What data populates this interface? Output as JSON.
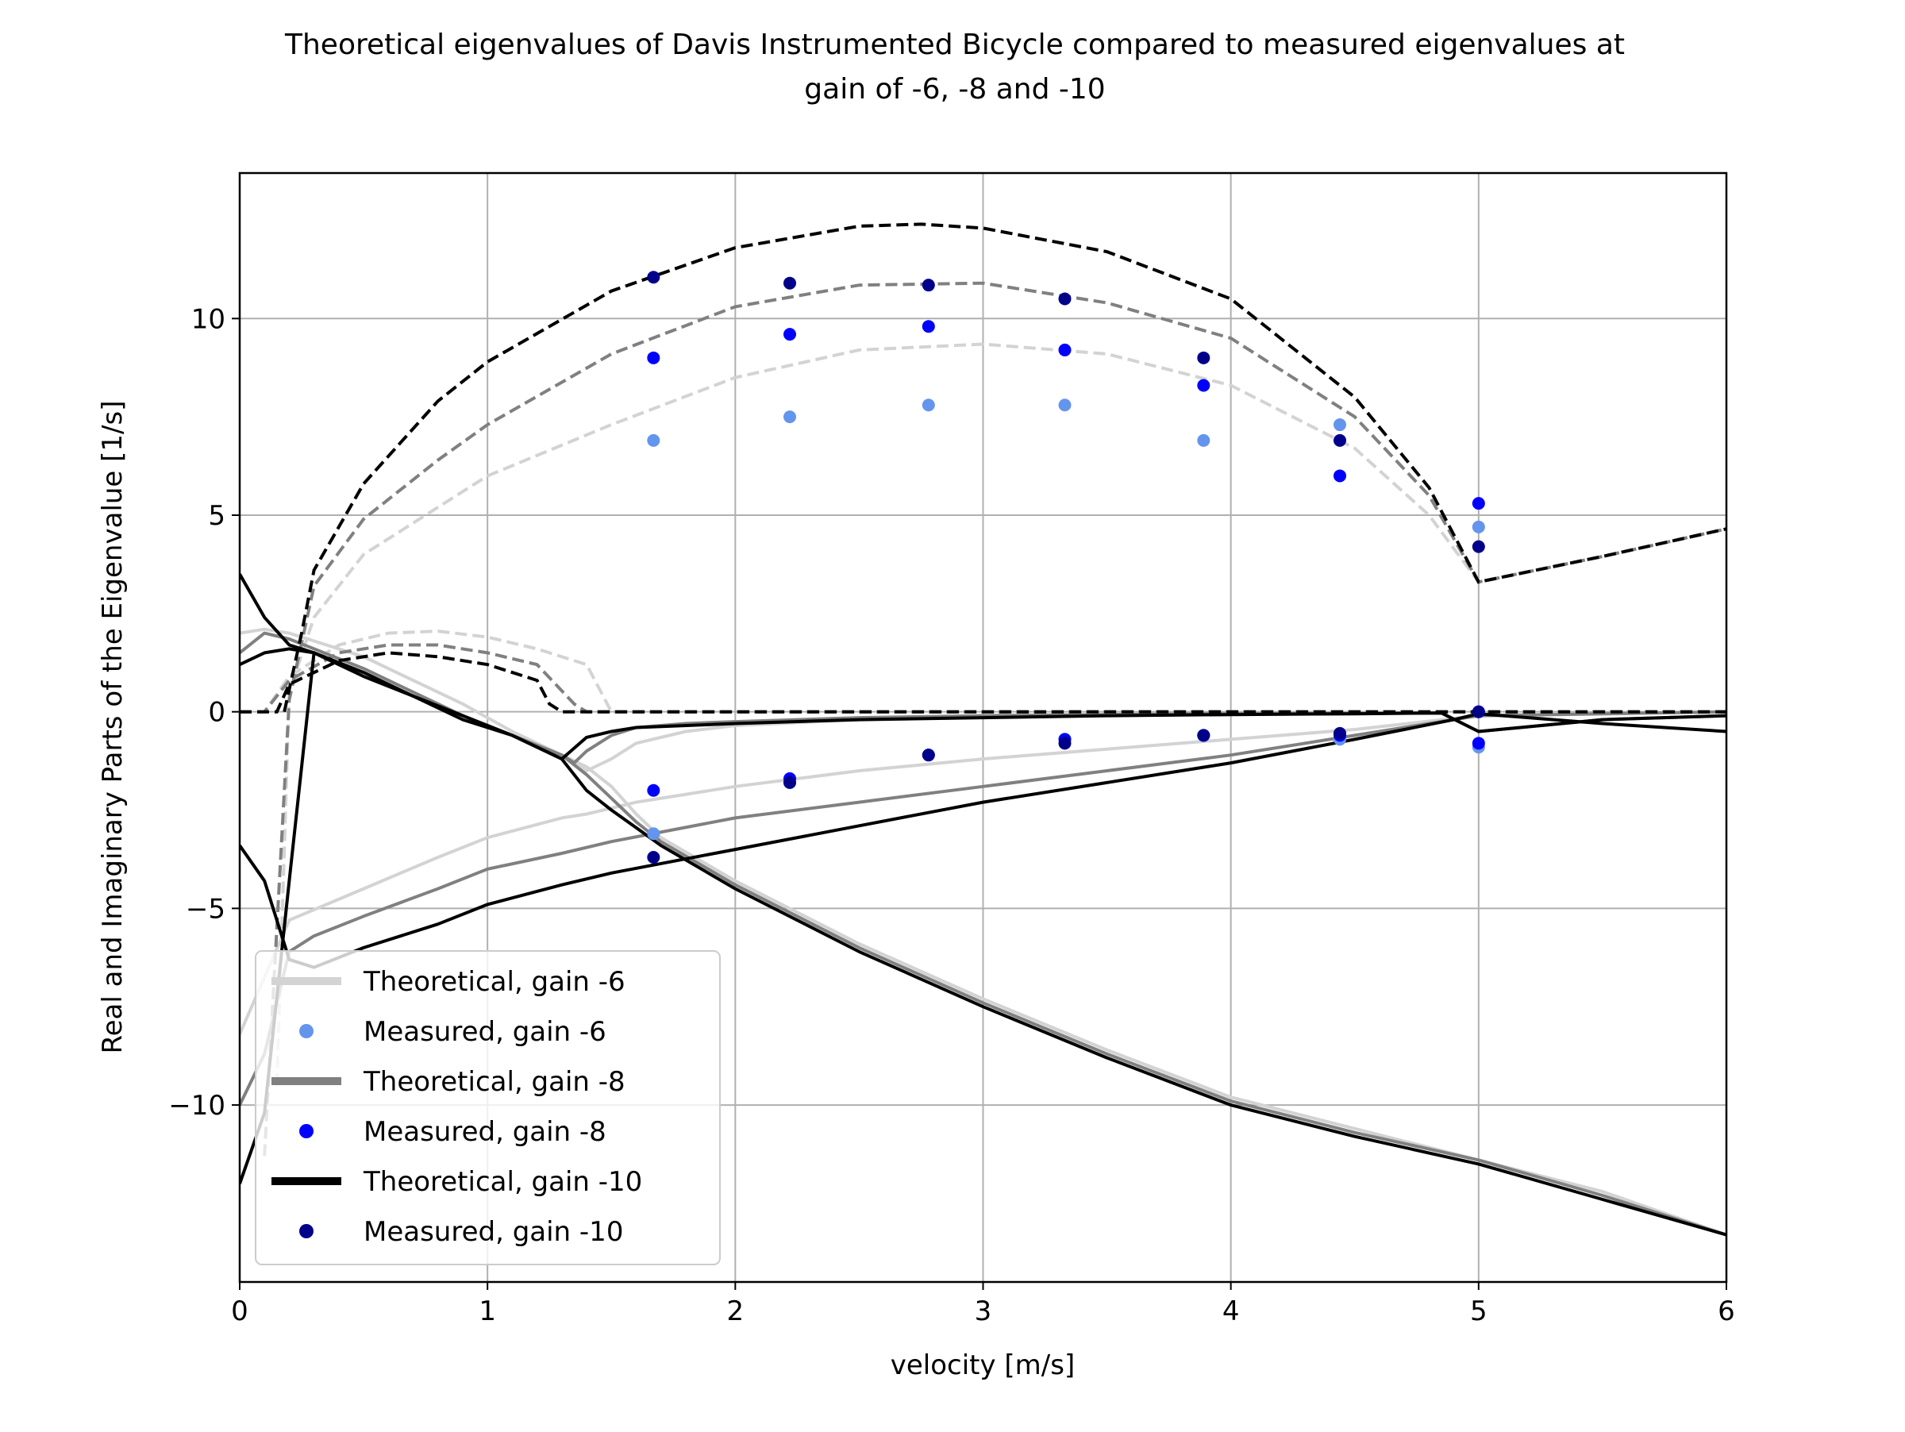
{
  "chart_data": {
    "type": "line",
    "title": "Theoretical eigenvalues of Davis Instrumented Bicycle compared to measured eigenvalues at\ngain of -6, -8 and -10",
    "xlabel": "velocity [m/s]",
    "ylabel": "Real and Imaginary Parts of the Eigenvalue [1/s]",
    "xlim": [
      0,
      6
    ],
    "ylim": [
      -14.5,
      13.7
    ],
    "xticks": [
      0,
      1,
      2,
      3,
      4,
      5,
      6
    ],
    "xtick_labels": [
      "0",
      "1",
      "2",
      "3",
      "4",
      "5",
      "6"
    ],
    "yticks": [
      -10,
      -5,
      0,
      5,
      10
    ],
    "ytick_labels": [
      "−10",
      "−5",
      "0",
      "5",
      "10"
    ],
    "grid": true,
    "legend_position": "lower-left",
    "legend": [
      {
        "label": "Theoretical, gain -6",
        "kind": "line",
        "color": "#d3d3d3"
      },
      {
        "label": "Measured, gain -6",
        "kind": "marker",
        "color": "#6495ed"
      },
      {
        "label": "Theoretical, gain -8",
        "kind": "line",
        "color": "#808080"
      },
      {
        "label": "Measured, gain -8",
        "kind": "marker",
        "color": "#0000ff"
      },
      {
        "label": "Theoretical, gain -10",
        "kind": "line",
        "color": "#000000"
      },
      {
        "label": "Measured, gain -10",
        "kind": "marker",
        "color": "#00008b"
      }
    ],
    "theoretical_series": [
      {
        "gain": -6,
        "color": "#d3d3d3",
        "real_parts": [
          {
            "x": [
              0,
              0.1,
              0.2,
              0.3,
              0.5,
              0.7,
              0.9,
              1.1,
              1.3,
              1.4,
              1.5,
              1.6,
              1.7,
              2.0,
              2.5,
              3.0,
              3.5,
              4.0,
              4.5,
              5.0,
              5.5,
              6.0
            ],
            "y": [
              2.0,
              2.1,
              2.0,
              1.8,
              1.4,
              0.8,
              0.2,
              -0.5,
              -1.1,
              -1.4,
              -1.9,
              -2.6,
              -3.2,
              -4.3,
              -5.9,
              -7.3,
              -8.6,
              -9.8,
              -10.6,
              -11.4,
              -12.2,
              -13.3
            ]
          },
          {
            "x": [
              0,
              0.2,
              0.5,
              0.8,
              1.0,
              1.3,
              1.4,
              1.5,
              1.6,
              2.0,
              2.5,
              3.0,
              3.5,
              4.0,
              4.5,
              5.0,
              5.5,
              6.0
            ],
            "y": [
              -8.2,
              -5.3,
              -4.5,
              -3.7,
              -3.2,
              -2.7,
              -2.6,
              -2.45,
              -2.3,
              -1.9,
              -1.5,
              -1.2,
              -0.95,
              -0.7,
              -0.45,
              -0.1,
              -0.05,
              0.0
            ]
          },
          {
            "x": [
              1.3,
              1.4,
              1.5,
              1.6,
              1.8,
              2.0,
              2.5,
              3.0,
              3.5,
              4.0,
              4.5,
              4.85,
              5.0,
              5.5,
              6.0
            ],
            "y": [
              -1.1,
              -1.5,
              -1.2,
              -0.8,
              -0.5,
              -0.35,
              -0.2,
              -0.1,
              -0.07,
              -0.05,
              -0.04,
              -0.03,
              -0.5,
              -0.2,
              -0.1
            ]
          }
        ],
        "imaginary_parts": [
          {
            "x": [
              0,
              0.1,
              0.2,
              0.4,
              0.6,
              0.8,
              1.0,
              1.2,
              1.4,
              1.5,
              1.6,
              2.0,
              3.0,
              4.0,
              5.0,
              5.5,
              6.0
            ],
            "y": [
              0,
              0,
              0.9,
              1.7,
              2.0,
              2.05,
              1.9,
              1.6,
              1.2,
              0,
              0,
              0,
              0,
              0,
              0,
              0,
              0
            ]
          },
          {
            "x": [
              0.15,
              0.2,
              0.3,
              0.5,
              0.8,
              1.0,
              1.5,
              2.0,
              2.5,
              3.0,
              3.5,
              4.0,
              4.5,
              4.8,
              5.0,
              5.5,
              6.0
            ],
            "y": [
              -9.5,
              0.5,
              2.4,
              4.0,
              5.2,
              6.0,
              7.3,
              8.5,
              9.2,
              9.35,
              9.1,
              8.3,
              6.7,
              5.0,
              3.3,
              3.95,
              4.65
            ]
          }
        ]
      },
      {
        "gain": -8,
        "color": "#808080",
        "real_parts": [
          {
            "x": [
              0,
              0.1,
              0.2,
              0.3,
              0.5,
              0.7,
              0.9,
              1.1,
              1.3,
              1.4,
              1.5,
              1.6,
              1.7,
              2.0,
              2.5,
              3.0,
              3.5,
              4.0,
              4.5,
              5.0,
              5.5,
              6.0
            ],
            "y": [
              1.5,
              2.0,
              1.85,
              1.6,
              1.1,
              0.5,
              -0.1,
              -0.6,
              -1.1,
              -1.6,
              -2.2,
              -2.8,
              -3.3,
              -4.4,
              -6.0,
              -7.4,
              -8.7,
              -9.9,
              -10.7,
              -11.4,
              -12.3,
              -13.3
            ]
          },
          {
            "x": [
              0,
              0.1,
              0.2,
              0.3,
              0.5,
              0.8,
              1.0,
              1.3,
              1.5,
              2.0,
              2.5,
              3.0,
              3.5,
              4.0,
              4.5,
              5.0,
              5.5,
              6.0
            ],
            "y": [
              -10.0,
              -8.7,
              -6.1,
              -5.7,
              -5.2,
              -4.5,
              -4.0,
              -3.6,
              -3.3,
              -2.7,
              -2.3,
              -1.9,
              -1.5,
              -1.1,
              -0.6,
              -0.1,
              -0.05,
              0.0
            ]
          },
          {
            "x": [
              1.3,
              1.35,
              1.4,
              1.5,
              1.6,
              1.8,
              2.0,
              2.5,
              3.0,
              3.5,
              4.0,
              4.5,
              4.85,
              5.0,
              5.5,
              6.0
            ],
            "y": [
              -1.1,
              -1.3,
              -1.0,
              -0.6,
              -0.4,
              -0.3,
              -0.25,
              -0.15,
              -0.1,
              -0.07,
              -0.05,
              -0.04,
              -0.03,
              -0.5,
              -0.2,
              -0.1
            ]
          }
        ],
        "imaginary_parts": [
          {
            "x": [
              0,
              0.1,
              0.2,
              0.4,
              0.6,
              0.8,
              1.0,
              1.2,
              1.35,
              1.4,
              1.6,
              2.0,
              3.0,
              4.0,
              5.0,
              5.5,
              6.0
            ],
            "y": [
              0,
              0,
              0.8,
              1.5,
              1.7,
              1.7,
              1.5,
              1.2,
              0.2,
              0,
              0,
              0,
              0,
              0,
              0,
              0,
              0
            ]
          },
          {
            "x": [
              0.1,
              0.2,
              0.3,
              0.5,
              0.8,
              1.0,
              1.5,
              2.0,
              2.5,
              3.0,
              3.5,
              4.0,
              4.5,
              4.8,
              5.0,
              5.5,
              6.0
            ],
            "y": [
              -11.3,
              0.3,
              3.2,
              4.9,
              6.4,
              7.3,
              9.1,
              10.3,
              10.85,
              10.9,
              10.4,
              9.5,
              7.5,
              5.5,
              3.3,
              3.95,
              4.65
            ]
          }
        ]
      },
      {
        "gain": -10,
        "color": "#000000",
        "real_parts": [
          {
            "x": [
              0,
              0.1,
              0.2,
              0.3,
              0.5,
              0.7,
              0.9,
              1.1,
              1.3,
              1.4,
              1.5,
              1.6,
              1.7,
              2.0,
              2.5,
              3.0,
              3.5,
              4.0,
              4.5,
              5.0,
              5.5,
              6.0
            ],
            "y": [
              3.5,
              2.4,
              1.7,
              1.5,
              1.0,
              0.4,
              -0.1,
              -0.6,
              -1.2,
              -2.0,
              -2.5,
              -2.95,
              -3.4,
              -4.5,
              -6.1,
              -7.5,
              -8.8,
              -10.0,
              -10.8,
              -11.5,
              -12.4,
              -13.3
            ]
          },
          {
            "x": [
              0,
              0.1,
              0.2,
              0.3,
              0.5,
              0.8,
              1.0,
              1.3,
              1.5,
              2.0,
              2.5,
              3.0,
              3.5,
              4.0,
              4.5,
              4.9,
              5.0,
              5.5,
              6.0
            ],
            "y": [
              -3.4,
              -4.3,
              -6.3,
              -6.5,
              -6.0,
              -5.4,
              -4.9,
              -4.4,
              -4.1,
              -3.5,
              -2.9,
              -2.3,
              -1.8,
              -1.3,
              -0.7,
              -0.2,
              -0.05,
              -0.3,
              -0.5
            ]
          },
          {
            "x": [
              0,
              0.1,
              0.2,
              0.3,
              0.5,
              0.7,
              0.9,
              1.1,
              1.3,
              1.4,
              1.5,
              1.6,
              2.0,
              2.5,
              3.0,
              3.5,
              4.0,
              4.5,
              4.85,
              5.0,
              5.5,
              6.0
            ],
            "y": [
              -12.0,
              -10.2,
              -4.3,
              1.5,
              0.9,
              0.4,
              -0.2,
              -0.6,
              -1.2,
              -0.65,
              -0.5,
              -0.4,
              -0.3,
              -0.2,
              -0.15,
              -0.1,
              -0.07,
              -0.05,
              -0.03,
              -0.5,
              -0.2,
              -0.1
            ]
          },
          {
            "x": [
              0,
              0.1,
              0.2,
              0.3
            ],
            "y": [
              1.2,
              1.5,
              1.6,
              1.5
            ]
          }
        ],
        "imaginary_parts": [
          {
            "x": [
              0,
              0.15,
              0.2,
              0.4,
              0.6,
              0.8,
              1.0,
              1.2,
              1.25,
              1.3,
              1.6,
              2.0,
              3.0,
              4.0,
              5.0,
              5.5,
              6.0
            ],
            "y": [
              0,
              0,
              0.7,
              1.3,
              1.5,
              1.4,
              1.2,
              0.8,
              0.2,
              0,
              0,
              0,
              0,
              0,
              0,
              0,
              0
            ]
          },
          {
            "x": [
              0.18,
              0.25,
              0.3,
              0.5,
              0.8,
              1.0,
              1.5,
              2.0,
              2.5,
              2.75,
              3.0,
              3.5,
              4.0,
              4.5,
              4.8,
              5.0,
              5.5,
              6.0
            ],
            "y": [
              0,
              2.0,
              3.6,
              5.8,
              7.9,
              8.9,
              10.7,
              11.8,
              12.35,
              12.4,
              12.3,
              11.7,
              10.5,
              8.0,
              5.7,
              3.3,
              3.95,
              4.65
            ]
          }
        ]
      }
    ],
    "measured_series": [
      {
        "name": "Measured, gain -6",
        "color": "#6495ed",
        "points": [
          {
            "x": 1.67,
            "y": 6.9
          },
          {
            "x": 2.22,
            "y": 7.5
          },
          {
            "x": 2.78,
            "y": 7.8
          },
          {
            "x": 3.33,
            "y": 7.8
          },
          {
            "x": 3.89,
            "y": 6.9
          },
          {
            "x": 4.44,
            "y": 7.3
          },
          {
            "x": 5.0,
            "y": 4.7
          },
          {
            "x": 1.67,
            "y": -3.1
          },
          {
            "x": 2.22,
            "y": -1.8
          },
          {
            "x": 3.33,
            "y": -0.7
          },
          {
            "x": 3.89,
            "y": -0.6
          },
          {
            "x": 4.44,
            "y": -0.7
          },
          {
            "x": 5.0,
            "y": -0.9
          }
        ]
      },
      {
        "name": "Measured, gain -8",
        "color": "#0000ff",
        "points": [
          {
            "x": 1.67,
            "y": 9.0
          },
          {
            "x": 2.22,
            "y": 9.6
          },
          {
            "x": 2.78,
            "y": 9.8
          },
          {
            "x": 3.33,
            "y": 9.2
          },
          {
            "x": 3.89,
            "y": 8.3
          },
          {
            "x": 4.44,
            "y": 6.0
          },
          {
            "x": 5.0,
            "y": 5.3
          },
          {
            "x": 1.67,
            "y": -2.0
          },
          {
            "x": 2.22,
            "y": -1.7
          },
          {
            "x": 2.78,
            "y": -1.1
          },
          {
            "x": 3.33,
            "y": -0.7
          },
          {
            "x": 3.89,
            "y": -0.6
          },
          {
            "x": 4.44,
            "y": -0.6
          },
          {
            "x": 5.0,
            "y": -0.8
          },
          {
            "x": 5.0,
            "y": 0.0
          }
        ]
      },
      {
        "name": "Measured, gain -10",
        "color": "#00008b",
        "points": [
          {
            "x": 1.67,
            "y": 11.05
          },
          {
            "x": 2.22,
            "y": 10.9
          },
          {
            "x": 2.78,
            "y": 10.85
          },
          {
            "x": 3.33,
            "y": 10.5
          },
          {
            "x": 3.89,
            "y": 9.0
          },
          {
            "x": 4.44,
            "y": 6.9
          },
          {
            "x": 5.0,
            "y": 4.2
          },
          {
            "x": 1.67,
            "y": -3.7
          },
          {
            "x": 2.22,
            "y": -1.8
          },
          {
            "x": 2.78,
            "y": -1.1
          },
          {
            "x": 3.33,
            "y": -0.8
          },
          {
            "x": 3.89,
            "y": -0.6
          },
          {
            "x": 4.44,
            "y": -0.55
          },
          {
            "x": 5.0,
            "y": 0.0
          }
        ]
      }
    ]
  }
}
